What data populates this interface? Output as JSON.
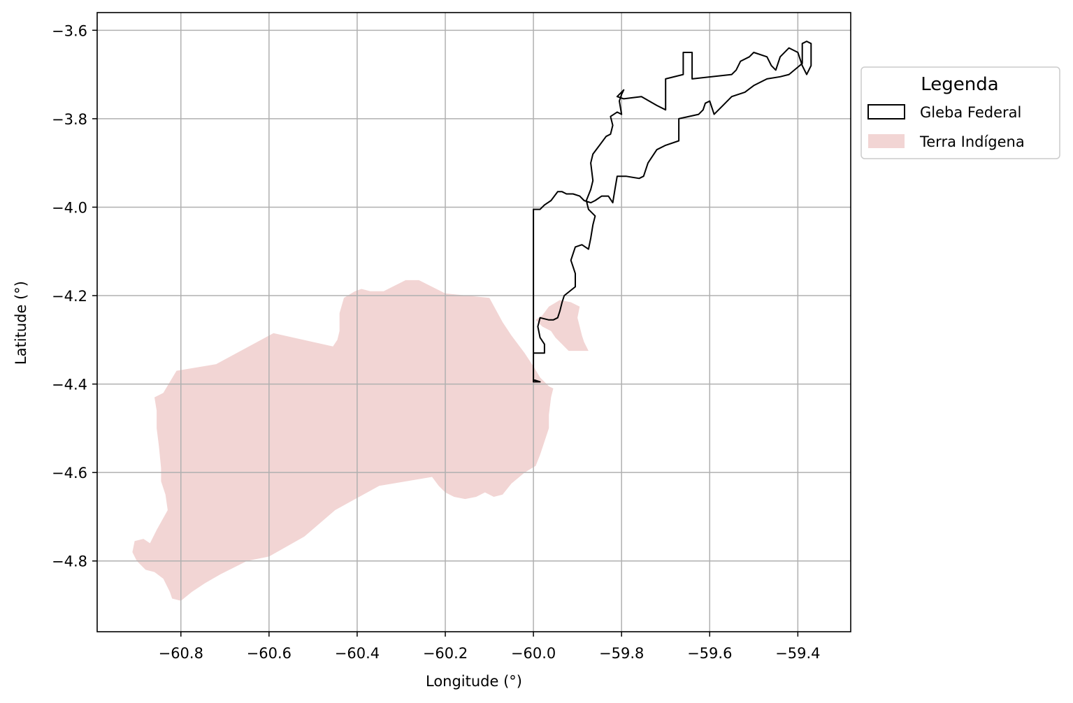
{
  "map": {
    "xlabel": "Longitude (°)",
    "ylabel": "Latitude (°)",
    "xlim": [
      -60.99,
      -59.28
    ],
    "ylim": [
      -4.96,
      -3.56
    ],
    "grid": true,
    "x_ticks": [
      -60.8,
      -60.6,
      -60.4,
      -60.2,
      -60.0,
      -59.8,
      -59.6,
      -59.4
    ],
    "y_ticks": [
      -3.6,
      -3.8,
      -4.0,
      -4.2,
      -4.4,
      -4.6,
      -4.8
    ],
    "x_tick_labels": [
      "−60.8",
      "−60.6",
      "−60.4",
      "−60.2",
      "−60.0",
      "−59.8",
      "−59.6",
      "−59.4"
    ],
    "y_tick_labels": [
      "−3.6",
      "−3.8",
      "−4.0",
      "−4.2",
      "−4.4",
      "−4.6",
      "−4.8"
    ]
  },
  "legend": {
    "title": "Legenda",
    "placement": "outside-upper-right",
    "items": [
      {
        "label": "Gleba Federal",
        "style": "outline",
        "color": "#000000"
      },
      {
        "label": "Terra Indígena",
        "style": "fill",
        "color": "#f2d5d4"
      }
    ]
  },
  "layers": {
    "terra_indigena": {
      "name": "Terra Indígena",
      "color": "#f2d5d4",
      "polygons": [
        [
          [
            -60.86,
            -4.43
          ],
          [
            -60.84,
            -4.42
          ],
          [
            -60.81,
            -4.37
          ],
          [
            -60.72,
            -4.355
          ],
          [
            -60.59,
            -4.285
          ],
          [
            -60.455,
            -4.315
          ],
          [
            -60.445,
            -4.3
          ],
          [
            -60.44,
            -4.28
          ],
          [
            -60.44,
            -4.24
          ],
          [
            -60.43,
            -4.205
          ],
          [
            -60.405,
            -4.19
          ],
          [
            -60.39,
            -4.185
          ],
          [
            -60.37,
            -4.19
          ],
          [
            -60.34,
            -4.19
          ],
          [
            -60.31,
            -4.175
          ],
          [
            -60.29,
            -4.165
          ],
          [
            -60.26,
            -4.165
          ],
          [
            -60.23,
            -4.18
          ],
          [
            -60.2,
            -4.195
          ],
          [
            -60.1,
            -4.205
          ],
          [
            -60.07,
            -4.26
          ],
          [
            -60.05,
            -4.29
          ],
          [
            -60.02,
            -4.33
          ],
          [
            -60.0,
            -4.36
          ],
          [
            -59.985,
            -4.385
          ],
          [
            -59.975,
            -4.395
          ],
          [
            -59.965,
            -4.405
          ],
          [
            -59.955,
            -4.41
          ],
          [
            -59.96,
            -4.43
          ],
          [
            -59.965,
            -4.47
          ],
          [
            -59.965,
            -4.5
          ],
          [
            -59.975,
            -4.53
          ],
          [
            -59.985,
            -4.56
          ],
          [
            -59.995,
            -4.585
          ],
          [
            -60.02,
            -4.6
          ],
          [
            -60.05,
            -4.625
          ],
          [
            -60.07,
            -4.65
          ],
          [
            -60.09,
            -4.655
          ],
          [
            -60.11,
            -4.645
          ],
          [
            -60.13,
            -4.655
          ],
          [
            -60.155,
            -4.66
          ],
          [
            -60.18,
            -4.655
          ],
          [
            -60.2,
            -4.645
          ],
          [
            -60.215,
            -4.63
          ],
          [
            -60.23,
            -4.61
          ],
          [
            -60.35,
            -4.63
          ],
          [
            -60.45,
            -4.685
          ],
          [
            -60.52,
            -4.745
          ],
          [
            -60.6,
            -4.79
          ],
          [
            -60.65,
            -4.8
          ],
          [
            -60.71,
            -4.83
          ],
          [
            -60.745,
            -4.85
          ],
          [
            -60.775,
            -4.87
          ],
          [
            -60.8,
            -4.89
          ],
          [
            -60.82,
            -4.885
          ],
          [
            -60.825,
            -4.87
          ],
          [
            -60.84,
            -4.84
          ],
          [
            -60.86,
            -4.825
          ],
          [
            -60.88,
            -4.82
          ],
          [
            -60.9,
            -4.8
          ],
          [
            -60.91,
            -4.78
          ],
          [
            -60.905,
            -4.755
          ],
          [
            -60.885,
            -4.75
          ],
          [
            -60.87,
            -4.76
          ],
          [
            -60.855,
            -4.73
          ],
          [
            -60.83,
            -4.685
          ],
          [
            -60.835,
            -4.65
          ],
          [
            -60.845,
            -4.62
          ],
          [
            -60.845,
            -4.59
          ],
          [
            -60.85,
            -4.54
          ],
          [
            -60.855,
            -4.5
          ],
          [
            -60.855,
            -4.46
          ]
        ],
        [
          [
            -59.995,
            -4.255
          ],
          [
            -59.98,
            -4.245
          ],
          [
            -59.965,
            -4.225
          ],
          [
            -59.94,
            -4.21
          ],
          [
            -59.915,
            -4.215
          ],
          [
            -59.895,
            -4.225
          ],
          [
            -59.9,
            -4.25
          ],
          [
            -59.895,
            -4.27
          ],
          [
            -59.89,
            -4.29
          ],
          [
            -59.885,
            -4.305
          ],
          [
            -59.875,
            -4.325
          ],
          [
            -59.895,
            -4.325
          ],
          [
            -59.92,
            -4.325
          ],
          [
            -59.935,
            -4.31
          ],
          [
            -59.95,
            -4.295
          ],
          [
            -59.96,
            -4.28
          ],
          [
            -59.98,
            -4.27
          ]
        ]
      ]
    },
    "gleba_federal": {
      "name": "Gleba Federal",
      "color": "#000000",
      "polygon": [
        [
          -60.0,
          -4.395
        ],
        [
          -60.0,
          -4.33
        ],
        [
          -59.975,
          -4.33
        ],
        [
          -59.975,
          -4.31
        ],
        [
          -59.985,
          -4.295
        ],
        [
          -59.99,
          -4.27
        ],
        [
          -59.985,
          -4.25
        ],
        [
          -59.965,
          -4.255
        ],
        [
          -59.955,
          -4.255
        ],
        [
          -59.945,
          -4.25
        ],
        [
          -59.94,
          -4.235
        ],
        [
          -59.935,
          -4.215
        ],
        [
          -59.93,
          -4.2
        ],
        [
          -59.905,
          -4.18
        ],
        [
          -59.905,
          -4.15
        ],
        [
          -59.915,
          -4.12
        ],
        [
          -59.905,
          -4.09
        ],
        [
          -59.89,
          -4.085
        ],
        [
          -59.875,
          -4.095
        ],
        [
          -59.87,
          -4.07
        ],
        [
          -59.865,
          -4.04
        ],
        [
          -59.86,
          -4.02
        ],
        [
          -59.875,
          -4.005
        ],
        [
          -59.88,
          -3.985
        ],
        [
          -59.87,
          -3.96
        ],
        [
          -59.865,
          -3.94
        ],
        [
          -59.87,
          -3.9
        ],
        [
          -59.865,
          -3.88
        ],
        [
          -59.85,
          -3.86
        ],
        [
          -59.835,
          -3.84
        ],
        [
          -59.825,
          -3.835
        ],
        [
          -59.82,
          -3.815
        ],
        [
          -59.825,
          -3.795
        ],
        [
          -59.81,
          -3.785
        ],
        [
          -59.8,
          -3.79
        ],
        [
          -59.805,
          -3.76
        ],
        [
          -59.8,
          -3.745
        ],
        [
          -59.795,
          -3.735
        ],
        [
          -59.81,
          -3.75
        ],
        [
          -59.795,
          -3.755
        ],
        [
          -59.755,
          -3.75
        ],
        [
          -59.72,
          -3.77
        ],
        [
          -59.7,
          -3.78
        ],
        [
          -59.7,
          -3.71
        ],
        [
          -59.66,
          -3.7
        ],
        [
          -59.66,
          -3.65
        ],
        [
          -59.64,
          -3.65
        ],
        [
          -59.64,
          -3.71
        ],
        [
          -59.55,
          -3.7
        ],
        [
          -59.54,
          -3.69
        ],
        [
          -59.53,
          -3.67
        ],
        [
          -59.51,
          -3.66
        ],
        [
          -59.5,
          -3.65
        ],
        [
          -59.47,
          -3.66
        ],
        [
          -59.46,
          -3.68
        ],
        [
          -59.45,
          -3.69
        ],
        [
          -59.44,
          -3.66
        ],
        [
          -59.42,
          -3.64
        ],
        [
          -59.4,
          -3.65
        ],
        [
          -59.39,
          -3.68
        ],
        [
          -59.38,
          -3.7
        ],
        [
          -59.37,
          -3.68
        ],
        [
          -59.37,
          -3.63
        ],
        [
          -59.38,
          -3.625
        ],
        [
          -59.39,
          -3.63
        ],
        [
          -59.39,
          -3.675
        ],
        [
          -59.42,
          -3.7
        ],
        [
          -59.44,
          -3.705
        ],
        [
          -59.47,
          -3.71
        ],
        [
          -59.5,
          -3.725
        ],
        [
          -59.52,
          -3.74
        ],
        [
          -59.55,
          -3.75
        ],
        [
          -59.57,
          -3.77
        ],
        [
          -59.59,
          -3.79
        ],
        [
          -59.6,
          -3.76
        ],
        [
          -59.61,
          -3.765
        ],
        [
          -59.615,
          -3.78
        ],
        [
          -59.625,
          -3.79
        ],
        [
          -59.67,
          -3.8
        ],
        [
          -59.67,
          -3.85
        ],
        [
          -59.7,
          -3.86
        ],
        [
          -59.72,
          -3.87
        ],
        [
          -59.74,
          -3.9
        ],
        [
          -59.75,
          -3.93
        ],
        [
          -59.76,
          -3.935
        ],
        [
          -59.79,
          -3.93
        ],
        [
          -59.81,
          -3.93
        ],
        [
          -59.815,
          -3.96
        ],
        [
          -59.82,
          -3.99
        ],
        [
          -59.83,
          -3.975
        ],
        [
          -59.845,
          -3.975
        ],
        [
          -59.86,
          -3.985
        ],
        [
          -59.87,
          -3.99
        ],
        [
          -59.885,
          -3.985
        ],
        [
          -59.895,
          -3.975
        ],
        [
          -59.91,
          -3.97
        ],
        [
          -59.925,
          -3.97
        ],
        [
          -59.935,
          -3.965
        ],
        [
          -59.945,
          -3.965
        ],
        [
          -59.96,
          -3.985
        ],
        [
          -59.975,
          -3.995
        ],
        [
          -59.985,
          -4.005
        ],
        [
          -60.0,
          -4.005
        ],
        [
          -60.0,
          -4.39
        ],
        [
          -59.985,
          -4.395
        ]
      ]
    }
  }
}
